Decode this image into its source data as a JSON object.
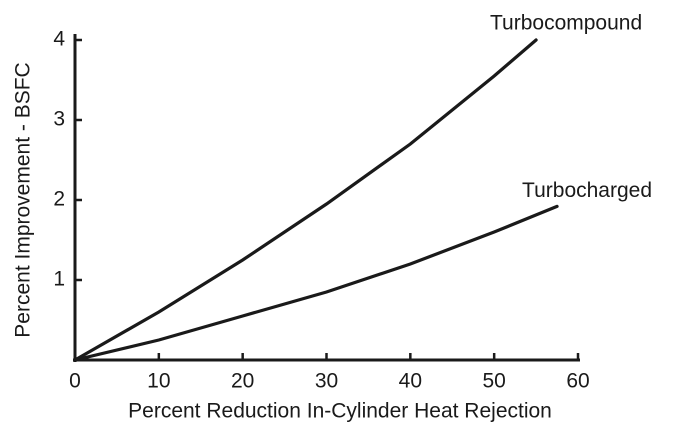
{
  "chart_data": {
    "type": "line",
    "xlabel": "Percent Reduction In-Cylinder Heat Rejection",
    "ylabel": "Percent Improvement - BSFC",
    "series": [
      {
        "name": "Turbocompound",
        "color": "#1a1a1a",
        "x": [
          0,
          10,
          20,
          30,
          40,
          50,
          55
        ],
        "values": [
          0,
          0.6,
          1.25,
          1.95,
          2.7,
          3.55,
          4.0
        ]
      },
      {
        "name": "Turbocharged",
        "color": "#1a1a1a",
        "x": [
          0,
          10,
          20,
          30,
          40,
          50,
          57.5
        ],
        "values": [
          0,
          0.25,
          0.55,
          0.85,
          1.2,
          1.6,
          1.92
        ]
      }
    ],
    "xlim": [
      0,
      60
    ],
    "xticks": [
      0,
      10,
      20,
      30,
      40,
      50,
      60
    ],
    "ylim": [
      0,
      4
    ],
    "yticks": [
      1,
      2,
      3,
      4
    ]
  }
}
